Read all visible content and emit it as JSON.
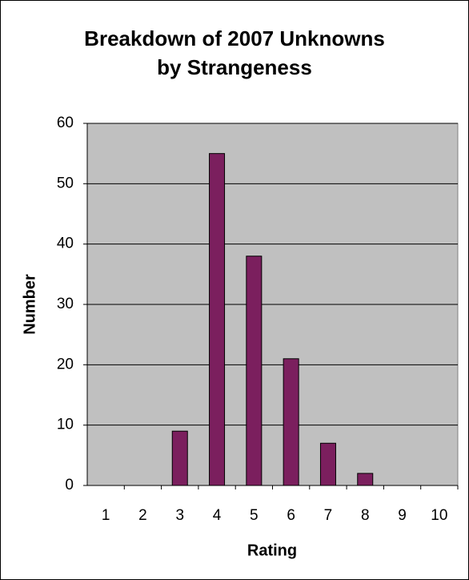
{
  "chart_data": {
    "type": "bar",
    "title": [
      "Breakdown of 2007 Unknowns",
      "by Strangeness"
    ],
    "x_label": "Rating",
    "y_label": "Number",
    "categories": [
      "1",
      "2",
      "3",
      "4",
      "5",
      "6",
      "7",
      "8",
      "9",
      "10"
    ],
    "values": [
      0,
      0,
      9,
      55,
      38,
      21,
      7,
      2,
      0,
      0
    ],
    "color": "#7b1f5e",
    "ylim": [
      0,
      60
    ],
    "yticks": [
      0,
      10,
      20,
      30,
      40,
      50,
      60
    ],
    "grid": true
  }
}
